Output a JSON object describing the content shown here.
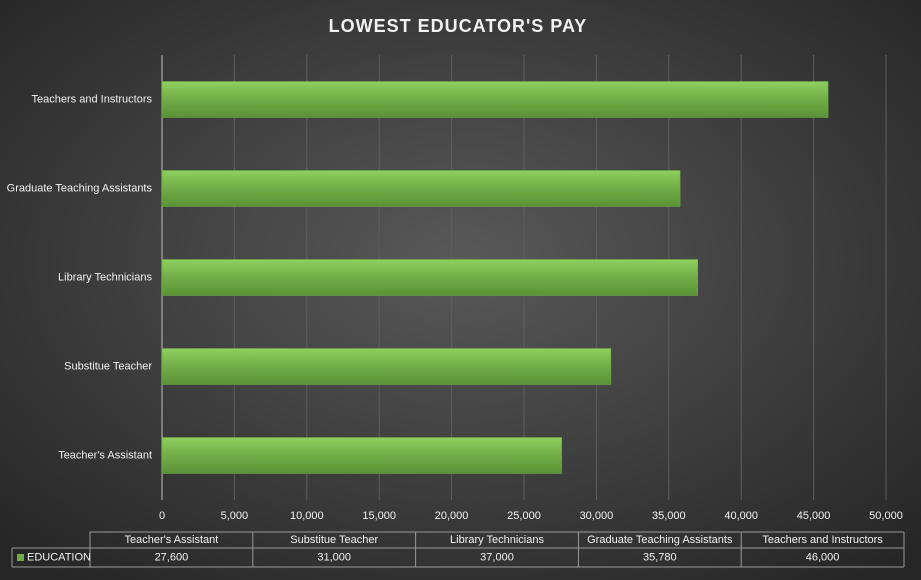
{
  "chart_data": {
    "type": "bar",
    "orientation": "horizontal",
    "title": "LOWEST EDUCATOR'S PAY",
    "categories": [
      "Teacher's Assistant",
      "Substitue Teacher",
      "Library Technicians",
      "Graduate Teaching Assistants",
      "Teachers and Instructors"
    ],
    "series": [
      {
        "name": "EDUCATION",
        "color": "#70ad47",
        "values": [
          27600,
          31000,
          37000,
          35780,
          46000
        ],
        "value_labels": [
          "27,600",
          "31,000",
          "37,000",
          "35,780",
          "46,000"
        ]
      }
    ],
    "xlim": [
      0,
      50000
    ],
    "xticks": [
      0,
      {
        "value": 5000,
        "label": "5,000"
      },
      {
        "value": 10000,
        "label": "10,000"
      },
      {
        "value": 15000,
        "label": "15,000"
      },
      {
        "value": 20000,
        "label": "20,000"
      },
      {
        "value": 25000,
        "label": "25,000"
      },
      {
        "value": 30000,
        "label": "30,000"
      },
      {
        "value": 35000,
        "label": "35,000"
      },
      {
        "value": 40000,
        "label": "40,000"
      },
      {
        "value": 45000,
        "label": "45,000"
      },
      {
        "value": 50000,
        "label": "50,000"
      }
    ],
    "grid": true,
    "data_table": true
  }
}
